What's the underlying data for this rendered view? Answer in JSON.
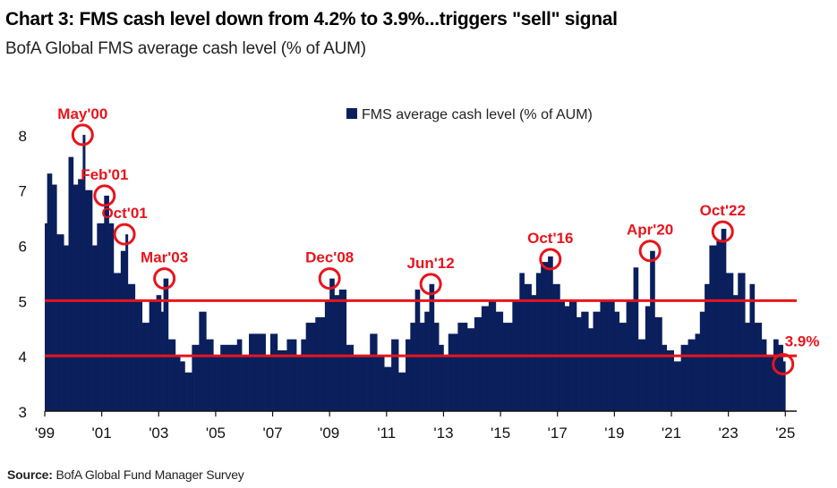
{
  "header": {
    "title": "Chart 3: FMS cash level down from 4.2% to 3.9%...triggers \"sell\" signal",
    "subtitle": "BofA Global FMS average cash level (% of AUM)"
  },
  "footer": {
    "source_label": "Source:",
    "source_text": "BofA Global Fund Manager Survey"
  },
  "colors": {
    "bars": "#0a1f5c",
    "threshold_lines": "#e8141c",
    "annotations": "#e8141c"
  },
  "chart_data": {
    "type": "bar",
    "title": "",
    "xlabel": "",
    "ylabel": "",
    "ylim": [
      3,
      8.5
    ],
    "yticks": [
      3,
      4,
      5,
      6,
      7,
      8
    ],
    "xlim": [
      1999.0,
      2025.4
    ],
    "xticks": [
      {
        "year": 1999,
        "label": "'99"
      },
      {
        "year": 2001,
        "label": "'01"
      },
      {
        "year": 2003,
        "label": "'03"
      },
      {
        "year": 2005,
        "label": "'05"
      },
      {
        "year": 2007,
        "label": "'07"
      },
      {
        "year": 2009,
        "label": "'09"
      },
      {
        "year": 2011,
        "label": "'11"
      },
      {
        "year": 2013,
        "label": "'13"
      },
      {
        "year": 2015,
        "label": "'15"
      },
      {
        "year": 2017,
        "label": "'17"
      },
      {
        "year": 2019,
        "label": "'19"
      },
      {
        "year": 2021,
        "label": "'21"
      },
      {
        "year": 2023,
        "label": "'23"
      },
      {
        "year": 2025,
        "label": "'25"
      }
    ],
    "legend": {
      "label": "FMS average cash level (% of AUM)",
      "position": "top"
    },
    "series": [
      {
        "name": "FMS average cash level (% of AUM)",
        "anchors": [
          [
            1999.0,
            6.4
          ],
          [
            1999.1,
            7.3
          ],
          [
            1999.25,
            7.1
          ],
          [
            1999.5,
            6.2
          ],
          [
            1999.75,
            6.0
          ],
          [
            1999.9,
            7.6
          ],
          [
            2000.05,
            7.1
          ],
          [
            2000.2,
            7.2
          ],
          [
            2000.33,
            8.0
          ],
          [
            2000.5,
            7.0
          ],
          [
            2000.75,
            6.0
          ],
          [
            2000.9,
            6.4
          ],
          [
            2001.1,
            6.9
          ],
          [
            2001.3,
            6.4
          ],
          [
            2001.5,
            5.5
          ],
          [
            2001.7,
            5.9
          ],
          [
            2001.8,
            6.2
          ],
          [
            2002.0,
            5.3
          ],
          [
            2002.2,
            5.0
          ],
          [
            2002.5,
            4.6
          ],
          [
            2002.8,
            5.0
          ],
          [
            2002.95,
            5.1
          ],
          [
            2003.1,
            4.8
          ],
          [
            2003.2,
            5.4
          ],
          [
            2003.4,
            4.3
          ],
          [
            2003.6,
            4.0
          ],
          [
            2003.8,
            3.9
          ],
          [
            2004.0,
            3.7
          ],
          [
            2004.3,
            4.2
          ],
          [
            2004.5,
            4.8
          ],
          [
            2004.8,
            4.3
          ],
          [
            2005.0,
            4.0
          ],
          [
            2005.3,
            4.2
          ],
          [
            2005.6,
            4.2
          ],
          [
            2005.8,
            4.3
          ],
          [
            2006.0,
            4.0
          ],
          [
            2006.3,
            4.4
          ],
          [
            2006.6,
            4.4
          ],
          [
            2006.8,
            4.0
          ],
          [
            2007.0,
            4.4
          ],
          [
            2007.3,
            4.1
          ],
          [
            2007.6,
            4.3
          ],
          [
            2007.9,
            4.0
          ],
          [
            2008.0,
            4.3
          ],
          [
            2008.3,
            4.6
          ],
          [
            2008.6,
            4.7
          ],
          [
            2008.9,
            5.0
          ],
          [
            2009.0,
            5.4
          ],
          [
            2009.2,
            5.1
          ],
          [
            2009.4,
            5.2
          ],
          [
            2009.6,
            4.2
          ],
          [
            2009.9,
            4.0
          ],
          [
            2010.2,
            4.0
          ],
          [
            2010.5,
            4.4
          ],
          [
            2010.8,
            4.0
          ],
          [
            2011.0,
            3.8
          ],
          [
            2011.2,
            4.3
          ],
          [
            2011.5,
            3.7
          ],
          [
            2011.7,
            4.3
          ],
          [
            2011.9,
            4.6
          ],
          [
            2012.0,
            5.2
          ],
          [
            2012.2,
            4.6
          ],
          [
            2012.4,
            4.8
          ],
          [
            2012.55,
            5.3
          ],
          [
            2012.7,
            4.6
          ],
          [
            2012.9,
            4.2
          ],
          [
            2013.0,
            4.0
          ],
          [
            2013.3,
            4.4
          ],
          [
            2013.6,
            4.6
          ],
          [
            2013.9,
            4.5
          ],
          [
            2014.1,
            4.7
          ],
          [
            2014.4,
            4.9
          ],
          [
            2014.7,
            5.0
          ],
          [
            2014.9,
            4.8
          ],
          [
            2015.1,
            4.6
          ],
          [
            2015.3,
            4.6
          ],
          [
            2015.5,
            5.0
          ],
          [
            2015.7,
            5.5
          ],
          [
            2015.9,
            5.3
          ],
          [
            2016.1,
            5.1
          ],
          [
            2016.3,
            5.5
          ],
          [
            2016.5,
            5.7
          ],
          [
            2016.7,
            5.8
          ],
          [
            2016.9,
            5.3
          ],
          [
            2017.1,
            5.0
          ],
          [
            2017.3,
            4.9
          ],
          [
            2017.5,
            5.0
          ],
          [
            2017.7,
            4.7
          ],
          [
            2017.9,
            4.8
          ],
          [
            2018.1,
            4.5
          ],
          [
            2018.3,
            4.8
          ],
          [
            2018.6,
            5.0
          ],
          [
            2018.9,
            5.0
          ],
          [
            2019.0,
            4.8
          ],
          [
            2019.2,
            4.6
          ],
          [
            2019.5,
            5.0
          ],
          [
            2019.7,
            5.6
          ],
          [
            2019.9,
            4.3
          ],
          [
            2020.1,
            4.9
          ],
          [
            2020.25,
            5.9
          ],
          [
            2020.5,
            4.7
          ],
          [
            2020.7,
            4.2
          ],
          [
            2020.9,
            4.1
          ],
          [
            2021.1,
            3.9
          ],
          [
            2021.4,
            4.2
          ],
          [
            2021.7,
            4.3
          ],
          [
            2021.9,
            4.4
          ],
          [
            2022.0,
            4.8
          ],
          [
            2022.2,
            5.3
          ],
          [
            2022.4,
            6.0
          ],
          [
            2022.6,
            6.1
          ],
          [
            2022.8,
            6.3
          ],
          [
            2023.0,
            5.5
          ],
          [
            2023.2,
            5.1
          ],
          [
            2023.4,
            5.5
          ],
          [
            2023.6,
            4.6
          ],
          [
            2023.8,
            5.3
          ],
          [
            2024.0,
            4.6
          ],
          [
            2024.2,
            4.3
          ],
          [
            2024.4,
            4.0
          ],
          [
            2024.6,
            4.3
          ],
          [
            2024.8,
            4.2
          ],
          [
            2024.92,
            3.9
          ]
        ]
      }
    ],
    "threshold_lines": [
      {
        "value": 5.0,
        "label": ""
      },
      {
        "value": 4.0,
        "label": ""
      }
    ],
    "annotations": [
      {
        "id": "may00",
        "label": "May'00",
        "x": 2000.33,
        "y": 8.0,
        "side": "above"
      },
      {
        "id": "feb01",
        "label": "Feb'01",
        "x": 2001.1,
        "y": 6.9,
        "side": "above"
      },
      {
        "id": "oct01",
        "label": "Oct'01",
        "x": 2001.8,
        "y": 6.2,
        "side": "above"
      },
      {
        "id": "mar03",
        "label": "Mar'03",
        "x": 2003.2,
        "y": 5.4,
        "side": "above"
      },
      {
        "id": "dec08",
        "label": "Dec'08",
        "x": 2009.0,
        "y": 5.4,
        "side": "above"
      },
      {
        "id": "jun12",
        "label": "Jun'12",
        "x": 2012.55,
        "y": 5.3,
        "side": "above"
      },
      {
        "id": "oct16",
        "label": "Oct'16",
        "x": 2016.75,
        "y": 5.75,
        "side": "above"
      },
      {
        "id": "apr20",
        "label": "Apr'20",
        "x": 2020.25,
        "y": 5.9,
        "side": "above"
      },
      {
        "id": "oct22",
        "label": "Oct'22",
        "x": 2022.8,
        "y": 6.25,
        "side": "above"
      },
      {
        "id": "latest",
        "label": "3.9%",
        "x": 2024.92,
        "y": 3.85,
        "side": "above-right"
      }
    ]
  }
}
